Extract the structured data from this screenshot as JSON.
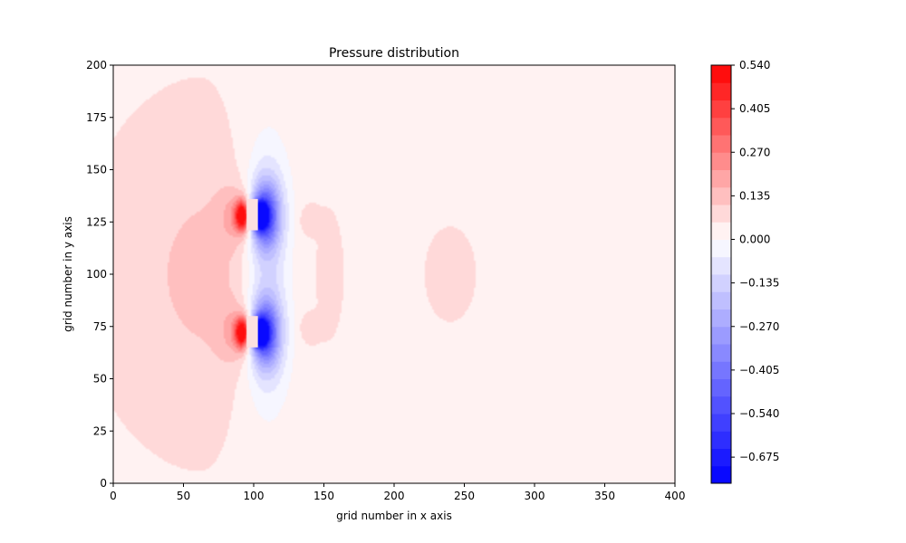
{
  "chart_data": {
    "type": "heatmap",
    "subtype": "filled-contour",
    "title": "Pressure distribution",
    "xlabel": "grid number in x axis",
    "ylabel": "grid number in y axis",
    "xlim": [
      0,
      400
    ],
    "ylim": [
      0,
      200
    ],
    "x_ticks": [
      0,
      50,
      100,
      150,
      200,
      250,
      300,
      350,
      400
    ],
    "y_ticks": [
      0,
      25,
      50,
      75,
      100,
      125,
      150,
      175,
      200
    ],
    "colormap": "bwr",
    "color_min": -0.756,
    "color_max": 0.54,
    "colorbar_ticks": [
      "0.540",
      "0.405",
      "0.270",
      "0.135",
      "0.000",
      "−0.135",
      "−0.270",
      "−0.405",
      "−0.540",
      "−0.675"
    ],
    "colorbar_tick_values": [
      0.54,
      0.405,
      0.27,
      0.135,
      0.0,
      -0.135,
      -0.27,
      -0.405,
      -0.54,
      -0.675
    ],
    "colorbar_levels": 24,
    "grid": false,
    "obstacles": [
      {
        "x_range": [
          95,
          103
        ],
        "y_range": [
          121,
          136
        ]
      },
      {
        "x_range": [
          95,
          103
        ],
        "y_range": [
          65,
          80
        ]
      }
    ],
    "features": {
      "background_value": 0.05,
      "high_pressure_cores": [
        {
          "x": 92,
          "y": 128,
          "value": 0.54
        },
        {
          "x": 92,
          "y": 72,
          "value": 0.54
        }
      ],
      "low_pressure_cores": [
        {
          "x": 105,
          "y": 128,
          "value": -0.756
        },
        {
          "x": 105,
          "y": 72,
          "value": -0.756
        }
      ],
      "wake_bump": {
        "x": 240,
        "y": 100,
        "value": 0.1
      }
    }
  }
}
